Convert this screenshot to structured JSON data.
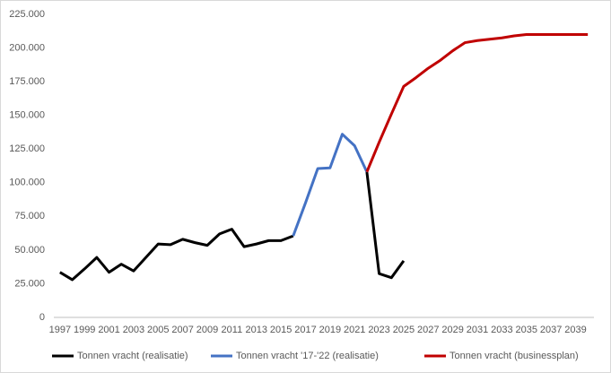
{
  "chart_data": {
    "type": "line",
    "categories": [
      "1997",
      null,
      "1999",
      null,
      "2001",
      null,
      "2003",
      null,
      "2005",
      null,
      "2007",
      null,
      "2009",
      null,
      "2011",
      null,
      "2013",
      null,
      "2015",
      null,
      "2017",
      null,
      "2019",
      null,
      "2021",
      null,
      "2023",
      null,
      "2025",
      null,
      "2027",
      null,
      "2029",
      null,
      "2031",
      null,
      "2033",
      null,
      "2035",
      null,
      "2037",
      null,
      "2039",
      null
    ],
    "series": [
      {
        "name": "Tonnen vracht (realisatie)",
        "color": "#000000",
        "values": [
          33500,
          28000,
          36000,
          44500,
          33500,
          39500,
          34500,
          44500,
          54500,
          54000,
          58000,
          55500,
          53500,
          62000,
          65500,
          52500,
          54500,
          57000,
          57000,
          60500,
          null,
          null,
          null,
          null,
          null,
          108000,
          32500,
          29500,
          42000,
          null,
          null,
          null,
          null,
          null,
          null,
          null,
          null,
          null,
          null,
          null,
          null,
          null,
          null,
          null
        ]
      },
      {
        "name": "Tonnen vracht '17-'22 (realisatie)",
        "color": "#4472c4",
        "values": [
          null,
          null,
          null,
          null,
          null,
          null,
          null,
          null,
          null,
          null,
          null,
          null,
          null,
          null,
          null,
          null,
          null,
          null,
          null,
          60500,
          85000,
          110500,
          111000,
          136000,
          127500,
          108000,
          null,
          null,
          null,
          null,
          null,
          null,
          null,
          null,
          null,
          null,
          null,
          null,
          null,
          null,
          null,
          null,
          null,
          null
        ]
      },
      {
        "name": "Tonnen vracht (businessplan)",
        "color": "#c00000",
        "values": [
          null,
          null,
          null,
          null,
          null,
          null,
          null,
          null,
          null,
          null,
          null,
          null,
          null,
          null,
          null,
          null,
          null,
          null,
          null,
          null,
          null,
          null,
          null,
          null,
          null,
          108000,
          130000,
          151000,
          171500,
          178000,
          185000,
          191000,
          198000,
          204000,
          205500,
          206500,
          207500,
          209000,
          210000,
          210000,
          210000,
          210000,
          210000,
          210000
        ]
      }
    ],
    "ylim": [
      0,
      225000
    ],
    "yticks": [
      0,
      {
        "value": 25000,
        "label": "25.000"
      },
      {
        "value": 50000,
        "label": "50.000"
      },
      {
        "value": 75000,
        "label": "75.000"
      },
      {
        "value": 100000,
        "label": "100.000"
      },
      {
        "value": 125000,
        "label": "125.000"
      },
      {
        "value": 150000,
        "label": "150.000"
      },
      {
        "value": 175000,
        "label": "175.000"
      },
      {
        "value": 200000,
        "label": "200.000"
      },
      {
        "value": 225000,
        "label": "225.000"
      }
    ],
    "grid": false,
    "legend": "bottom"
  }
}
